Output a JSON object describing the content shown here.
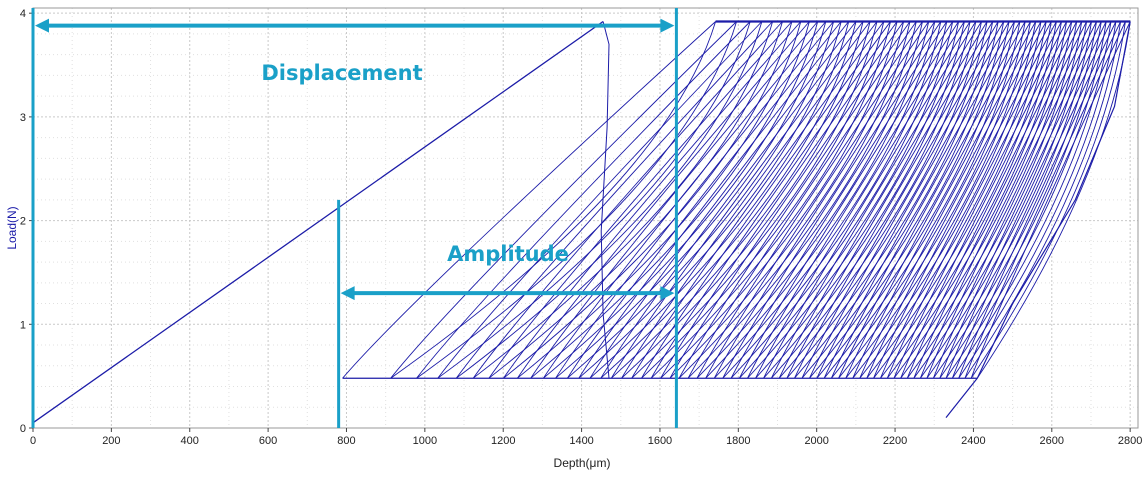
{
  "chart_data": {
    "type": "line",
    "xlabel": "Depth(μm)",
    "ylabel": "Load(N)",
    "xlim": [
      0,
      2820
    ],
    "ylim": [
      0,
      4.05
    ],
    "x_ticks": [
      0,
      200,
      400,
      600,
      800,
      1000,
      1200,
      1400,
      1600,
      1800,
      2000,
      2200,
      2400,
      2600,
      2800
    ],
    "y_ticks": [
      0,
      1,
      2,
      3,
      4
    ],
    "grid": true,
    "series_color": "#1c1ca8",
    "annotation_color": "#1aa0c8",
    "series": [
      {
        "cycles": 65,
        "first_loading": {
          "x": [
            0,
            1455
          ],
          "y": [
            0.05,
            3.92
          ]
        },
        "first_unloading": {
          "x": [
            1455,
            1470,
            1465,
            1450,
            1455,
            1470
          ],
          "y": [
            3.92,
            3.7,
            2.9,
            1.9,
            1.1,
            0.48
          ]
        },
        "min_load": 0.48,
        "max_load": 3.92,
        "reload_start_x": 790,
        "peak_depths": [
          1455,
          1742,
          2800
        ],
        "minimum_depths": [
          790,
          2410
        ],
        "final_unloading": {
          "x": [
            2800,
            2760,
            2660,
            2500,
            2410,
            2330
          ],
          "y": [
            3.92,
            3.1,
            2.2,
            1.2,
            0.48,
            0.1
          ]
        }
      }
    ],
    "annotations": [
      {
        "text": "Displacement",
        "x_from": 0,
        "x_to": 1642,
        "y": 3.88
      },
      {
        "text": "Amplitude",
        "x_from": 780,
        "x_to": 1642,
        "y": 1.3
      }
    ]
  }
}
